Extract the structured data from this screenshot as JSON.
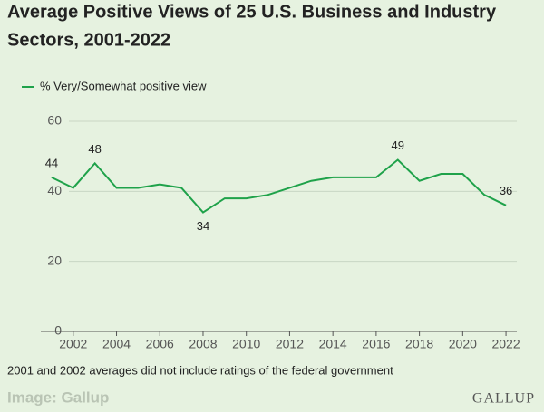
{
  "chart_data": {
    "type": "line",
    "title_lines": [
      "Average Positive Views of 25 U.S. Business and Industry",
      "Sectors, 2001-2022"
    ],
    "x": [
      2001,
      2002,
      2003,
      2004,
      2005,
      2006,
      2007,
      2008,
      2009,
      2010,
      2011,
      2012,
      2013,
      2014,
      2015,
      2016,
      2017,
      2018,
      2019,
      2020,
      2021,
      2022
    ],
    "series": [
      {
        "name": "% Very/Somewhat positive view",
        "color": "#1fa24a",
        "values": [
          44,
          41,
          48,
          41,
          41,
          42,
          41,
          34,
          38,
          38,
          39,
          41,
          43,
          44,
          44,
          44,
          49,
          43,
          45,
          45,
          39,
          36
        ]
      }
    ],
    "labeled_x": [
      2001,
      2003,
      2008,
      2017,
      2022
    ],
    "xlim": [
      2000.5,
      2022.5
    ],
    "xticks": [
      2002,
      2004,
      2006,
      2008,
      2010,
      2012,
      2014,
      2016,
      2018,
      2020,
      2022
    ],
    "ylim": [
      0,
      60
    ],
    "yticks": [
      0,
      20,
      40,
      60
    ],
    "grid": true,
    "legend": "top-left",
    "footnote": "2001 and 2002 averages did not include ratings of the federal government",
    "credit": "Image: Gallup",
    "logo": "GALLUP"
  }
}
